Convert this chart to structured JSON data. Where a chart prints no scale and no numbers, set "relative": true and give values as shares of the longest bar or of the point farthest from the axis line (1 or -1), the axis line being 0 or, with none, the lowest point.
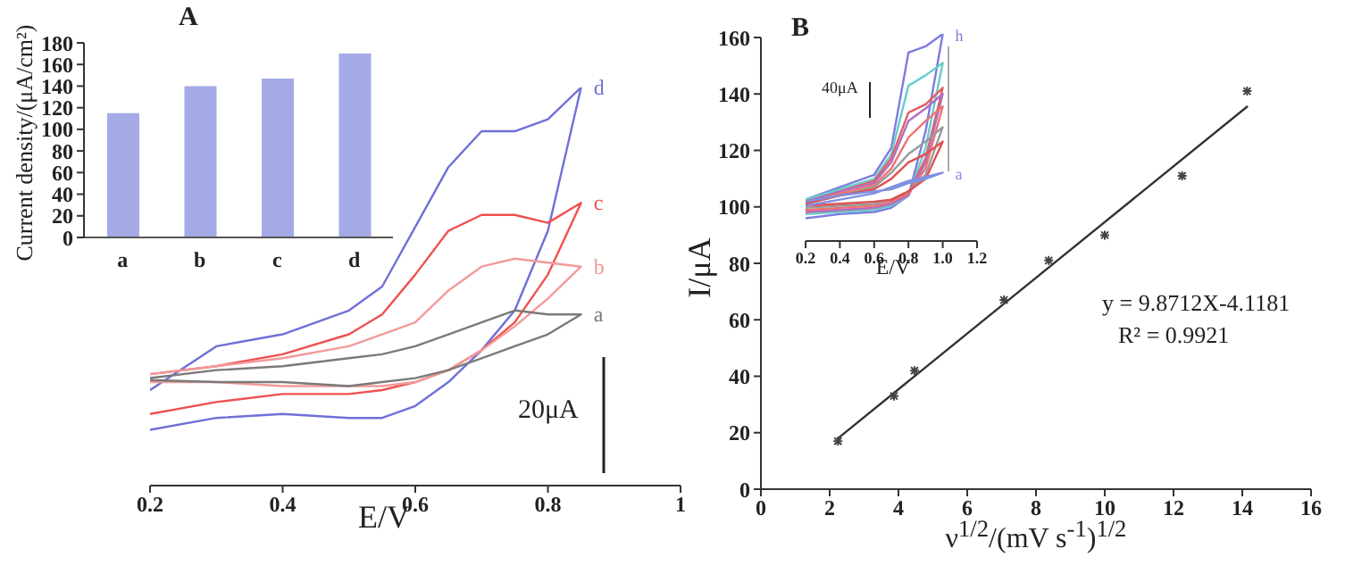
{
  "chart_data": [
    {
      "type": "bar",
      "title": "A",
      "ylabel": "Current density/(μA/cm²)",
      "categories": [
        "a",
        "b",
        "c",
        "d"
      ],
      "values": [
        115,
        140,
        147,
        170
      ],
      "color": "#a3aae6",
      "ylim": [
        0,
        180
      ],
      "yticks": [
        0,
        20,
        40,
        60,
        80,
        100,
        120,
        140,
        160,
        180
      ]
    },
    {
      "type": "line",
      "relative": true,
      "xlabel": "E/V",
      "xlim": [
        0.2,
        1
      ],
      "xticks": [
        0.2,
        0.4,
        0.6,
        0.8,
        1
      ],
      "x": [
        0.2,
        0.3,
        0.4,
        0.5,
        0.55,
        0.6,
        0.65,
        0.7,
        0.75,
        0.8,
        0.85,
        0.8,
        0.75,
        0.7,
        0.65,
        0.6,
        0.55,
        0.5,
        0.4,
        0.3,
        0.2
      ],
      "annotations": [
        "20μA"
      ],
      "series": [
        {
          "name": "a",
          "color": "#7a7a7a",
          "values": [
            0.27,
            0.29,
            0.3,
            0.32,
            0.33,
            0.35,
            0.38,
            0.41,
            0.44,
            0.43,
            0.43,
            0.38,
            0.35,
            0.32,
            0.29,
            0.27,
            0.26,
            0.25,
            0.26,
            0.26,
            0.265
          ]
        },
        {
          "name": "b",
          "color": "#f29a9a",
          "values": [
            0.28,
            0.3,
            0.32,
            0.35,
            0.38,
            0.41,
            0.49,
            0.55,
            0.57,
            0.56,
            0.55,
            0.47,
            0.4,
            0.34,
            0.29,
            0.26,
            0.25,
            0.25,
            0.25,
            0.26,
            0.26
          ]
        },
        {
          "name": "c",
          "color": "#f05050",
          "values": [
            0.28,
            0.3,
            0.33,
            0.38,
            0.43,
            0.53,
            0.64,
            0.68,
            0.68,
            0.66,
            0.71,
            0.53,
            0.41,
            0.34,
            0.29,
            0.26,
            0.24,
            0.23,
            0.23,
            0.21,
            0.18
          ]
        },
        {
          "name": "d",
          "color": "#6f6fd8",
          "values": [
            0.24,
            0.35,
            0.38,
            0.44,
            0.5,
            0.65,
            0.8,
            0.89,
            0.89,
            0.92,
            1,
            0.64,
            0.44,
            0.34,
            0.26,
            0.2,
            0.17,
            0.17,
            0.18,
            0.17,
            0.14
          ]
        }
      ]
    },
    {
      "type": "scatter",
      "title": "B",
      "xlabel": "ν$^{1/2}$/(mV s$^{-1}$)$^{1/2}$",
      "ylabel": "I/μA",
      "xlim": [
        0,
        16
      ],
      "xticks": [
        0,
        2,
        4,
        6,
        8,
        10,
        12,
        14,
        16
      ],
      "ylim": [
        0,
        160
      ],
      "yticks": [
        0,
        20,
        40,
        60,
        80,
        100,
        120,
        140,
        160
      ],
      "marker": "cross",
      "annotations": [
        "y = 9.8712X-4.1181",
        "R² = 0.9921"
      ],
      "series": [
        {
          "color": "#444444",
          "x": [
            2.24,
            3.87,
            4.47,
            7.07,
            8.37,
            10,
            12.25,
            14.14
          ],
          "values": [
            17,
            33,
            42,
            67,
            81,
            90,
            111,
            141
          ]
        },
        {
          "type": "line",
          "marker": "none",
          "color": "#333333",
          "x": [
            2.24,
            14.14
          ],
          "values": [
            18,
            135.5
          ]
        }
      ]
    },
    {
      "type": "line",
      "relative": true,
      "xlabel": "E/V",
      "xlim": [
        0.2,
        1.2
      ],
      "xticks": [
        0.2,
        0.4,
        0.6,
        0.8,
        {
          "value": 1,
          "label": "1.0"
        },
        1.2
      ],
      "x": [
        0.2,
        0.4,
        0.6,
        0.7,
        0.8,
        0.9,
        1,
        0.9,
        0.8,
        0.7,
        0.6,
        0.4,
        0.2
      ],
      "annotations": [
        "40μA"
      ],
      "series": [
        {
          "name": "a",
          "color": "#8090e0",
          "values": [
            0.17,
            0.2,
            0.23,
            0.26,
            0.29,
            0.31,
            0.33,
            0.3,
            0.28,
            0.25,
            0.24,
            0.22,
            0.19
          ]
        },
        {
          "color": "#e05050",
          "values": [
            0.18,
            0.22,
            0.25,
            0.3,
            0.38,
            0.42,
            0.48,
            0.3,
            0.24,
            0.2,
            0.19,
            0.18,
            0.17
          ]
        },
        {
          "color": "#999999",
          "values": [
            0.18,
            0.22,
            0.26,
            0.33,
            0.42,
            0.48,
            0.55,
            0.32,
            0.24,
            0.2,
            0.18,
            0.17,
            0.16
          ]
        },
        {
          "color": "#f07070",
          "values": [
            0.18,
            0.23,
            0.27,
            0.35,
            0.5,
            0.58,
            0.65,
            0.35,
            0.23,
            0.19,
            0.17,
            0.16,
            0.15
          ]
        },
        {
          "color": "#b070c0",
          "values": [
            0.19,
            0.24,
            0.28,
            0.38,
            0.58,
            0.64,
            0.71,
            0.38,
            0.22,
            0.18,
            0.16,
            0.15,
            0.14
          ]
        },
        {
          "color": "#e06060",
          "values": [
            0.19,
            0.24,
            0.29,
            0.4,
            0.62,
            0.66,
            0.74,
            0.4,
            0.23,
            0.18,
            0.16,
            0.15,
            0.14
          ]
        },
        {
          "color": "#66cccc",
          "values": [
            0.2,
            0.25,
            0.3,
            0.42,
            0.75,
            0.8,
            0.86,
            0.45,
            0.22,
            0.17,
            0.15,
            0.14,
            0.13
          ]
        },
        {
          "name": "h",
          "color": "#7b7be0",
          "values": [
            0.2,
            0.26,
            0.32,
            0.45,
            0.91,
            0.94,
            1,
            0.53,
            0.22,
            0.16,
            0.14,
            0.13,
            0.11
          ]
        }
      ]
    }
  ]
}
